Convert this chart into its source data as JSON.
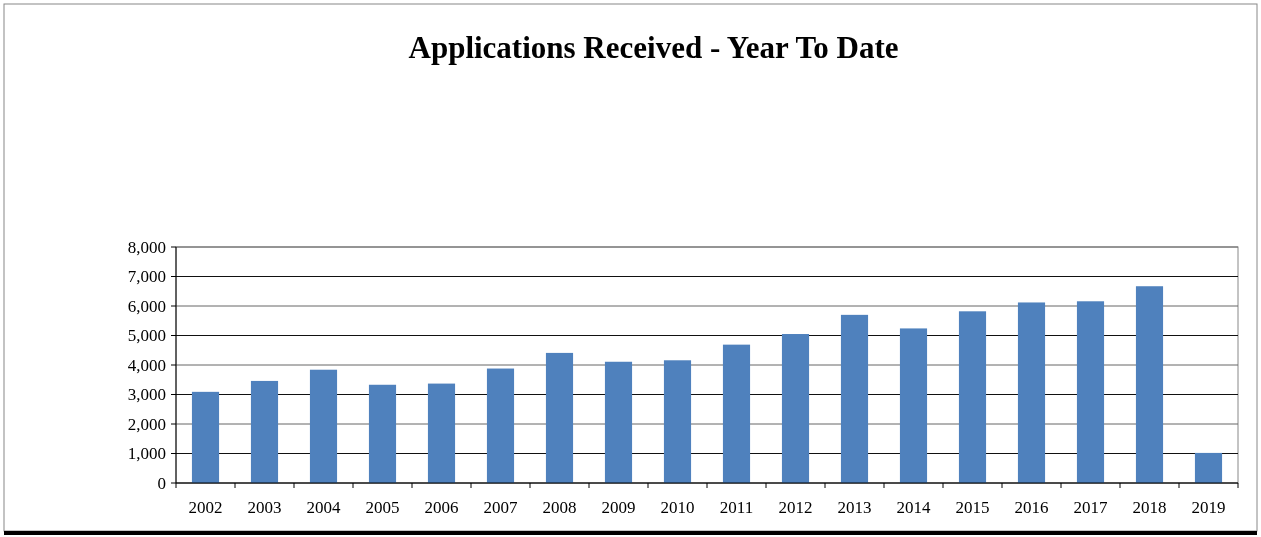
{
  "chart_data": {
    "type": "bar",
    "title": "Applications Received - Year To Date",
    "categories": [
      "2002",
      "2003",
      "2004",
      "2005",
      "2006",
      "2007",
      "2008",
      "2009",
      "2010",
      "2011",
      "2012",
      "2013",
      "2014",
      "2015",
      "2016",
      "2017",
      "2018",
      "2019"
    ],
    "values": [
      3090,
      3460,
      3840,
      3330,
      3370,
      3880,
      4410,
      4110,
      4160,
      4690,
      5050,
      5700,
      5240,
      5820,
      6120,
      6160,
      6670,
      1020
    ],
    "color": "#4f81bd",
    "ylim": [
      0,
      8000
    ],
    "yticks": [
      {
        "value": 0,
        "label": "0"
      },
      {
        "value": 1000,
        "label": "1,000"
      },
      {
        "value": 2000,
        "label": "2,000"
      },
      {
        "value": 3000,
        "label": "3,000"
      },
      {
        "value": 4000,
        "label": "4,000"
      },
      {
        "value": 5000,
        "label": "5,000"
      },
      {
        "value": 6000,
        "label": "6,000"
      },
      {
        "value": 7000,
        "label": "7,000"
      },
      {
        "value": 8000,
        "label": "8,000"
      }
    ],
    "grid": "y"
  }
}
